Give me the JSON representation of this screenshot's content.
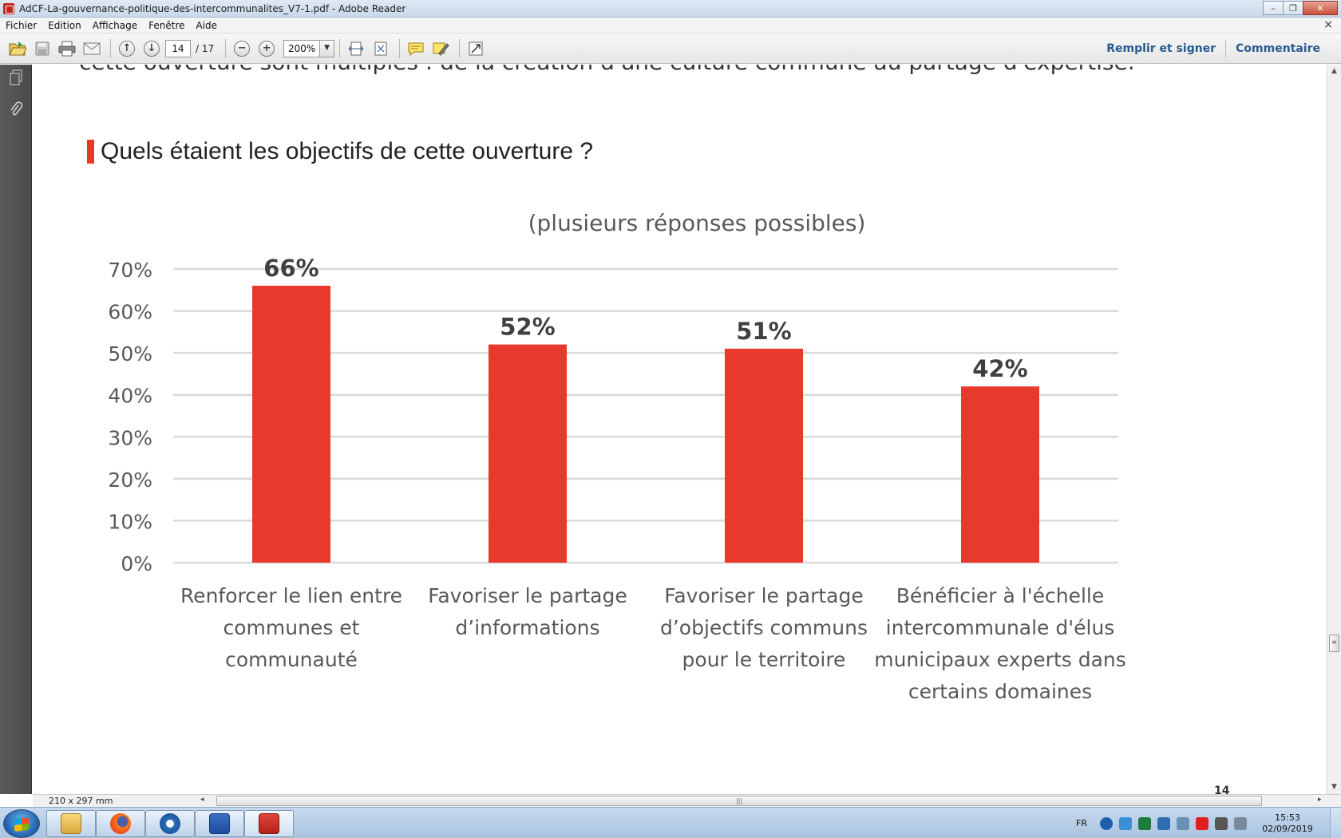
{
  "window": {
    "title": "AdCF-La-gouvernance-politique-des-intercommunalites_V7-1.pdf - Adobe Reader",
    "min_glyph": "–",
    "max_glyph": "❐",
    "close_glyph": "✕"
  },
  "menu": {
    "items": [
      "Fichier",
      "Edition",
      "Affichage",
      "Fenêtre",
      "Aide"
    ],
    "close_glyph": "×"
  },
  "toolbar": {
    "page_current": "14",
    "page_total": "/ 17",
    "zoom": "200%",
    "fill_sign": "Remplir et signer",
    "comment": "Commentaire"
  },
  "document": {
    "cut_text": "cette ouverture sont multiples : de la création d'une culture commune au partage d'expertise.",
    "heading": "Quels étaient les objectifs de cette ouverture ?",
    "corner_number": "14"
  },
  "chart_data": {
    "type": "bar",
    "title": "",
    "subtitle": "(plusieurs réponses possibles)",
    "xlabel": "",
    "ylabel": "",
    "ylim": [
      0,
      70
    ],
    "ytick_step": 10,
    "ytick_labels": [
      "0%",
      "10%",
      "20%",
      "30%",
      "40%",
      "50%",
      "60%",
      "70%"
    ],
    "grid": true,
    "bar_color": "#e8392d",
    "categories": [
      [
        "Renforcer le lien entre",
        "communes et",
        "communauté"
      ],
      [
        "Favoriser le partage",
        "d’informations"
      ],
      [
        "Favoriser le partage",
        "d’objectifs communs",
        "pour le territoire"
      ],
      [
        "Bénéficier à l'échelle",
        "intercommunale d'élus",
        "municipaux experts dans",
        "certains domaines"
      ]
    ],
    "values": [
      66,
      52,
      51,
      42
    ],
    "value_labels": [
      "66%",
      "52%",
      "51%",
      "42%"
    ]
  },
  "status": {
    "page_size": "210 x 297 mm"
  },
  "taskbar": {
    "lang": "FR",
    "time": "15:53",
    "date": "02/09/2019",
    "apps": [
      "file-explorer",
      "firefox",
      "thunderbird",
      "word",
      "adobe-reader"
    ]
  }
}
